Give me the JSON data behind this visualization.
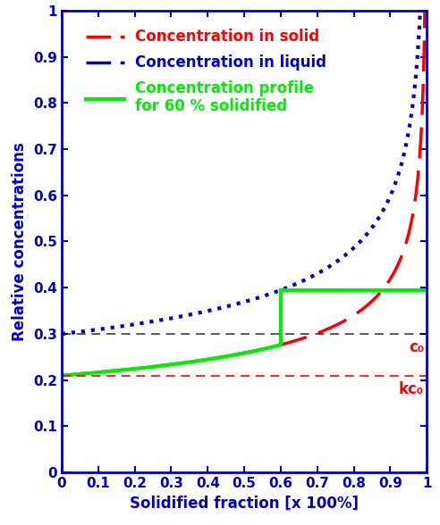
{
  "k": 0.7,
  "c0": 0.3,
  "fs_split": 0.6,
  "xlim": [
    0,
    1.0
  ],
  "ylim": [
    0,
    1.0
  ],
  "xlabel": "Solidified fraction [x 100%]",
  "ylabel": "Relative concentrations",
  "xticks": [
    0,
    0.1,
    0.2,
    0.3,
    0.4,
    0.5,
    0.6,
    0.7,
    0.8,
    0.9,
    1.0
  ],
  "yticks": [
    0,
    0.1,
    0.2,
    0.3,
    0.4,
    0.5,
    0.6,
    0.7,
    0.8,
    0.9,
    1.0
  ],
  "legend_solid_label": "Concentration in solid",
  "legend_liquid_label": "Concentration in liquid",
  "legend_profile_label": "Concentration profile\nfor 60 % solidified",
  "c0_label": "c₀",
  "kc0_label": "kc₀",
  "axis_color": "#0000cc",
  "red_color": "#ff0000",
  "blue_color": "#0000cc",
  "green_color": "#00ee00",
  "black_color": "#000000",
  "background_color": "#ffffff"
}
